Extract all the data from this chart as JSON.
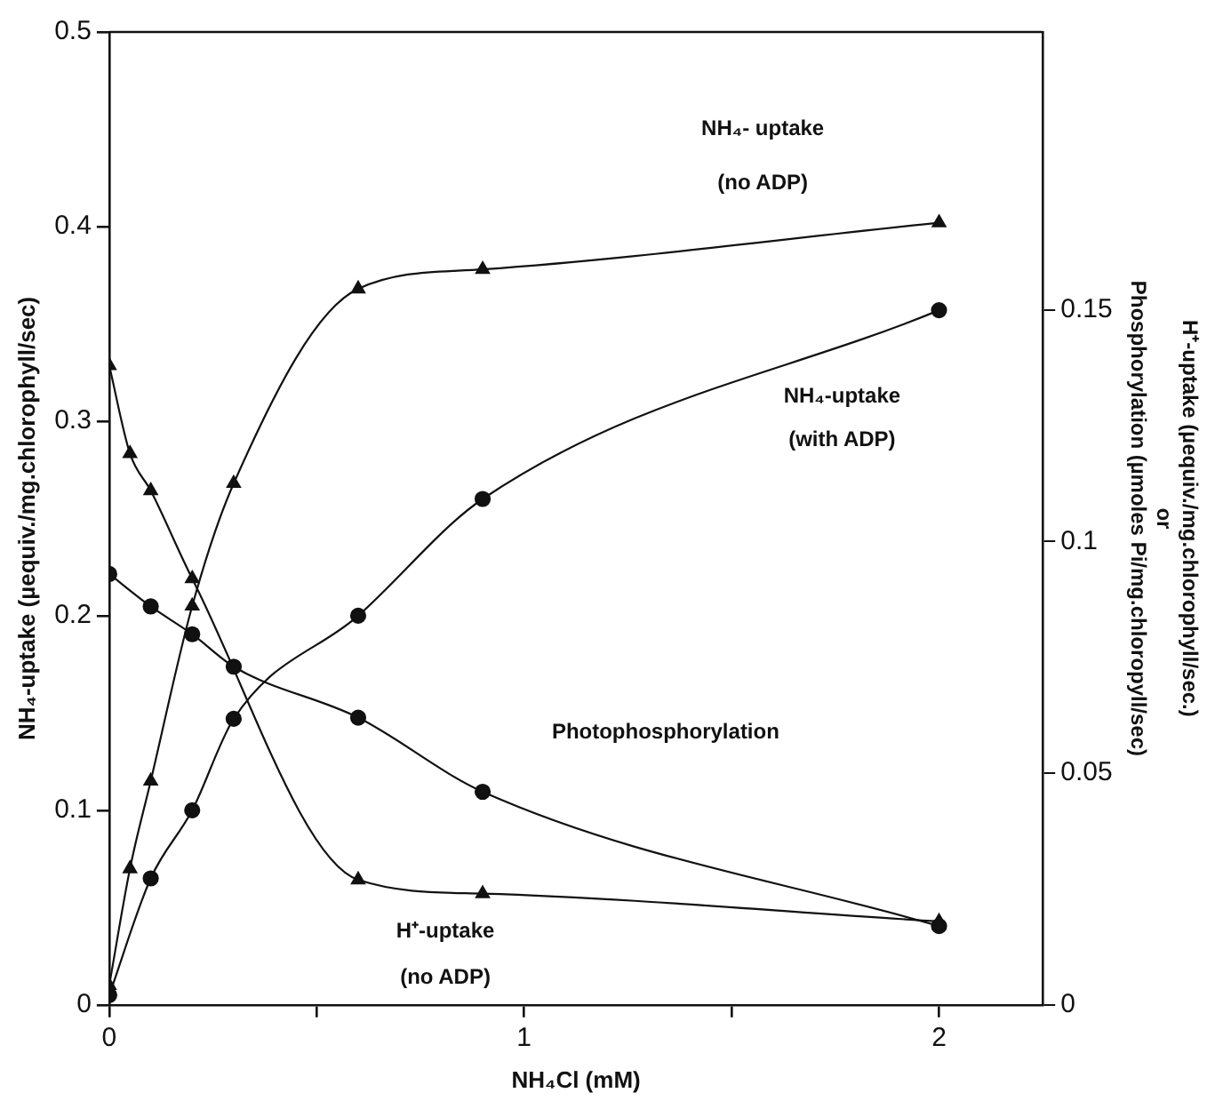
{
  "chart_data": {
    "type": "line",
    "xlabel": "NH₄Cl (mM)",
    "ylabel": "NH₄-uptake (µequiv./mg.chlorophyll/sec)",
    "y2label": "H⁺-uptake (µequiv./mg.chlorophyll/sec.)\nor\nPhosphorylation (µmoles Pi/mg.chloropyll/sec)",
    "xlim": [
      0,
      2.25
    ],
    "xticks": [
      0,
      {
        "value": 0.5,
        "label": null
      },
      1,
      {
        "value": 1.5,
        "label": null
      },
      2
    ],
    "ylim": [
      0,
      0.5
    ],
    "yticks": [
      0,
      0.1,
      0.2,
      0.3,
      0.4,
      0.5
    ],
    "y2lim": [
      0,
      0.21
    ],
    "y2ticks": [
      0,
      0.05,
      0.1,
      0.15
    ],
    "grid": false,
    "legend": false,
    "series": [
      {
        "color": "#111111",
        "marker": "triangle",
        "x": [
          0,
          0.05,
          0.1,
          0.2,
          0.3,
          0.6,
          0.9,
          2
        ],
        "values": [
          0.01,
          0.07,
          0.115,
          0.205,
          0.268,
          0.368,
          0.378,
          0.402
        ]
      },
      {
        "color": "#111111",
        "marker": "circle",
        "x": [
          0,
          0.1,
          0.2,
          0.3,
          0.6,
          0.9,
          2
        ],
        "values": [
          0.005,
          0.065,
          0.1,
          0.147,
          0.2,
          0.26,
          0.357
        ]
      },
      {
        "color": "#111111",
        "marker": "triangle",
        "axis": "y2",
        "x": [
          0,
          0.05,
          0.1,
          0.2,
          0.6,
          0.9,
          2
        ],
        "values": [
          0.138,
          0.119,
          0.111,
          0.092,
          0.027,
          0.024,
          0.018
        ]
      },
      {
        "color": "#111111",
        "marker": "circle",
        "axis": "y2",
        "x": [
          0,
          0.1,
          0.2,
          0.3,
          0.6,
          0.9,
          2
        ],
        "values": [
          0.093,
          0.086,
          0.08,
          0.073,
          0.062,
          0.046,
          0.017
        ]
      }
    ],
    "annotations": [
      "NH₄- uptake",
      "(no ADP)",
      "NH₄-uptake",
      "(with ADP)",
      "Photophosphorylation",
      "H⁺-uptake",
      "(no ADP)"
    ]
  }
}
